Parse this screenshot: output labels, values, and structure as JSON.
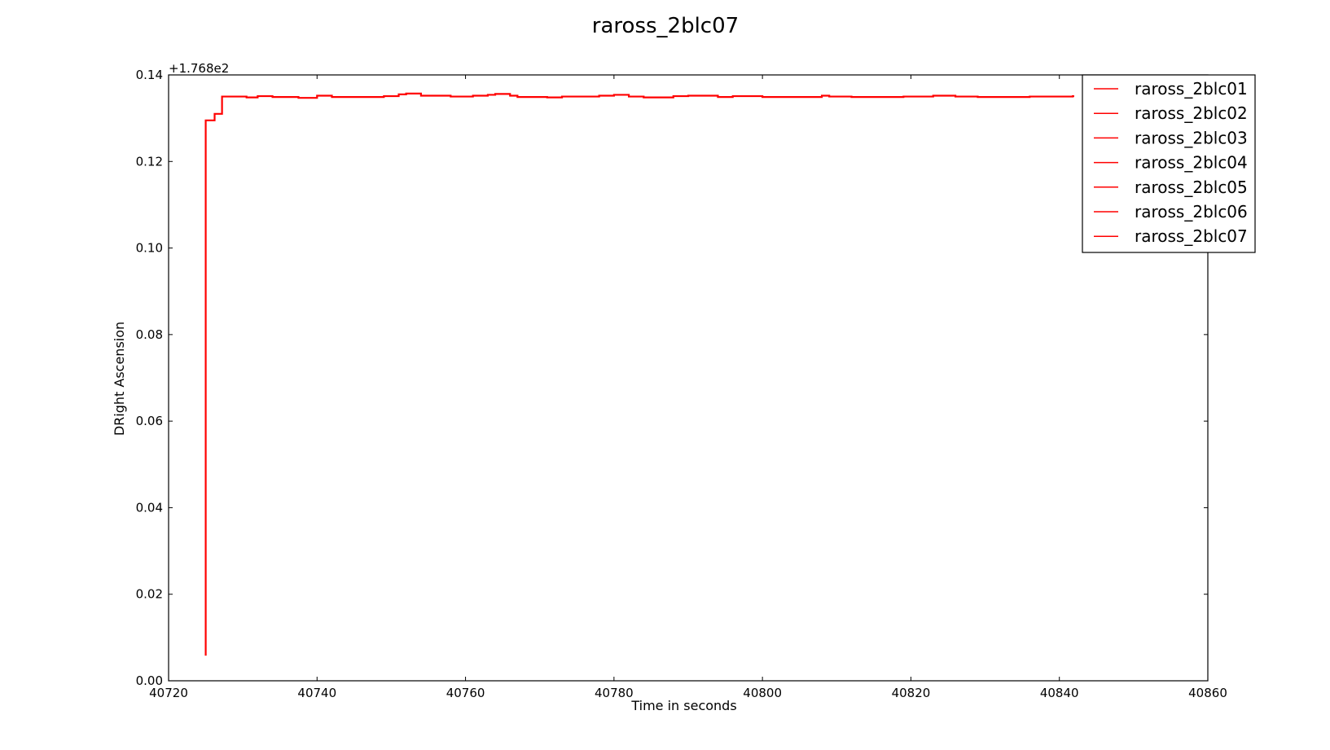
{
  "chart_data": {
    "type": "line",
    "title": "raross_2blc07",
    "xlabel": "Time in seconds",
    "ylabel": "DRight Ascension",
    "offset_label": "+1.768e2",
    "xlim": [
      40720,
      40860
    ],
    "ylim": [
      0.0,
      0.14
    ],
    "xticks": [
      40720,
      40740,
      40760,
      40780,
      40800,
      40820,
      40840,
      40860
    ],
    "yticks": [
      0.0,
      0.02,
      0.04,
      0.06,
      0.08,
      0.1,
      0.12,
      0.14
    ],
    "xtick_labels": [
      "40720",
      "40740",
      "40760",
      "40780",
      "40800",
      "40820",
      "40840",
      "40860"
    ],
    "ytick_labels": [
      "0.00",
      "0.02",
      "0.04",
      "0.06",
      "0.08",
      "0.10",
      "0.12",
      "0.14"
    ],
    "grid": false,
    "legend_position": "top-right",
    "legend": [
      "raross_2blc01",
      "raross_2blc02",
      "raross_2blc03",
      "raross_2blc04",
      "raross_2blc05",
      "raross_2blc06",
      "raross_2blc07"
    ],
    "line_color": "#ff0000",
    "series": [
      {
        "name": "raross_2blc07",
        "step": true,
        "x": [
          40725.0,
          40725.0,
          40726.2,
          40726.2,
          40727.2,
          40727.2,
          40730.5,
          40730.5,
          40732.0,
          40732.0,
          40734.0,
          40734.0,
          40737.5,
          40737.5,
          40740.0,
          40740.0,
          40742.0,
          40742.0,
          40749.0,
          40749.0,
          40751.0,
          40751.0,
          40752.0,
          40752.0,
          40754.0,
          40754.0,
          40758.0,
          40758.0,
          40761.0,
          40761.0,
          40763.0,
          40763.0,
          40764.0,
          40764.0,
          40766.0,
          40766.0,
          40767.0,
          40767.0,
          40771.0,
          40771.0,
          40773.0,
          40773.0,
          40778.0,
          40778.0,
          40780.0,
          40780.0,
          40782.0,
          40782.0,
          40784.0,
          40784.0,
          40788.0,
          40788.0,
          40790.0,
          40790.0,
          40794.0,
          40794.0,
          40796.0,
          40796.0,
          40800.0,
          40800.0,
          40808.0,
          40808.0,
          40809.0,
          40809.0,
          40812.0,
          40812.0,
          40819.0,
          40819.0,
          40823.0,
          40823.0,
          40826.0,
          40826.0,
          40829.0,
          40829.0,
          40836.0,
          40836.0,
          40841.8,
          40841.8,
          40842.0
        ],
        "y": [
          0.0058,
          0.1295,
          0.1295,
          0.131,
          0.131,
          0.135,
          0.135,
          0.1348,
          0.1348,
          0.1351,
          0.1351,
          0.1349,
          0.1349,
          0.1347,
          0.1347,
          0.1352,
          0.1352,
          0.1349,
          0.1349,
          0.1351,
          0.1351,
          0.1355,
          0.1355,
          0.1357,
          0.1357,
          0.1352,
          0.1352,
          0.135,
          0.135,
          0.1352,
          0.1352,
          0.1354,
          0.1354,
          0.1356,
          0.1356,
          0.1352,
          0.1352,
          0.1349,
          0.1349,
          0.1348,
          0.1348,
          0.135,
          0.135,
          0.1352,
          0.1352,
          0.1354,
          0.1354,
          0.135,
          0.135,
          0.1348,
          0.1348,
          0.1351,
          0.1351,
          0.1352,
          0.1352,
          0.1349,
          0.1349,
          0.1351,
          0.1351,
          0.1349,
          0.1349,
          0.1352,
          0.1352,
          0.135,
          0.135,
          0.1349,
          0.1349,
          0.135,
          0.135,
          0.1352,
          0.1352,
          0.135,
          0.135,
          0.1349,
          0.1349,
          0.135,
          0.135,
          0.1351,
          0.1351
        ]
      }
    ]
  }
}
